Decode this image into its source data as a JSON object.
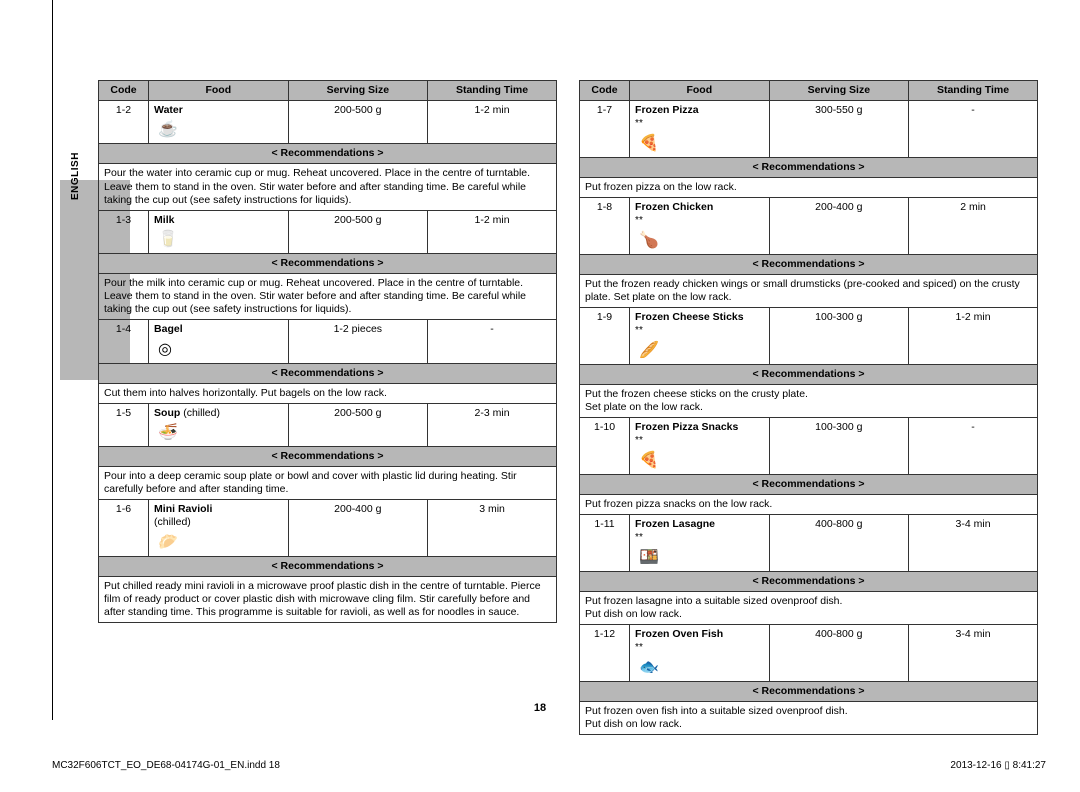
{
  "side_label": "ENGLISH",
  "headers": {
    "code": "Code",
    "food": "Food",
    "serving": "Serving Size",
    "standing": "Standing Time",
    "rec": "< Recommendations >"
  },
  "left": [
    {
      "code": "1-2",
      "food": "Water",
      "icon": "☕",
      "serving": "200-500 g",
      "standing": "1-2 min",
      "rec": "Pour the water into ceramic cup or mug. Reheat uncovered. Place in the centre of turntable. Leave them to stand in the oven. Stir water before and after standing time. Be careful while taking the cup out (see safety instructions for liquids)."
    },
    {
      "code": "1-3",
      "food": "Milk",
      "icon": "🥛",
      "serving": "200-500 g",
      "standing": "1-2 min",
      "rec": "Pour the milk into ceramic cup or mug. Reheat uncovered. Place in the centre of turntable. Leave them to stand in the oven. Stir water before and after standing time. Be careful while taking the cup out (see safety instructions for liquids)."
    },
    {
      "code": "1-4",
      "food": "Bagel",
      "icon": "◎",
      "serving": "1-2 pieces",
      "standing": "-",
      "rec": "Cut them into halves horizontally. Put bagels on the low rack."
    },
    {
      "code": "1-5",
      "food": "Soup",
      "sub": " (chilled)",
      "icon": "🍜",
      "serving": "200-500 g",
      "standing": "2-3 min",
      "rec": "Pour into a deep ceramic soup plate or bowl and cover with plastic lid during heating. Stir carefully before and after standing time."
    },
    {
      "code": "1-6",
      "food": "Mini Ravioli",
      "sub2": "(chilled)",
      "icon": "🥟",
      "serving": "200-400 g",
      "standing": "3 min",
      "rec": "Put chilled ready mini ravioli in a microwave proof plastic dish in the centre of turntable. Pierce film of ready product or cover plastic dish with microwave cling film. Stir carefully before and after standing time. This programme is suitable for ravioli, as well as for noodles in sauce."
    }
  ],
  "right": [
    {
      "code": "1-7",
      "food": "Frozen Pizza",
      "aster": "**",
      "icon": "🍕",
      "serving": "300-550 g",
      "standing": "-",
      "rec": "Put frozen pizza on the low rack."
    },
    {
      "code": "1-8",
      "food": "Frozen Chicken",
      "aster": "**",
      "icon": "🍗",
      "serving": "200-400 g",
      "standing": "2 min",
      "rec": "Put the frozen ready chicken wings or small drumsticks (pre-cooked and spiced) on the crusty plate. Set plate on the low rack."
    },
    {
      "code": "1-9",
      "food": "Frozen Cheese Sticks",
      "aster": "**",
      "icon": "🥖",
      "serving": "100-300 g",
      "standing": "1-2 min",
      "rec": "Put the frozen cheese sticks on the crusty plate.\nSet plate on the low rack."
    },
    {
      "code": "1-10",
      "food": "Frozen Pizza Snacks",
      "aster": "**",
      "icon": "🍕",
      "serving": "100-300 g",
      "standing": "-",
      "rec": "Put frozen pizza snacks on the low rack."
    },
    {
      "code": "1-11",
      "food": "Frozen Lasagne",
      "aster": "**",
      "icon": "🍱",
      "serving": "400-800 g",
      "standing": "3-4 min",
      "rec": "Put frozen lasagne into a suitable sized ovenproof dish.\nPut dish on low rack."
    },
    {
      "code": "1-12",
      "food": "Frozen Oven Fish",
      "aster": "**",
      "icon": "🐟",
      "serving": "400-800 g",
      "standing": "3-4 min",
      "rec": "Put frozen oven fish into a suitable sized ovenproof dish.\nPut dish on low rack."
    }
  ],
  "page_number": "18",
  "footer_left": "MC32F606TCT_EO_DE68-04174G-01_EN.indd   18",
  "footer_right": "2013-12-16   ▯ 8:41:27"
}
